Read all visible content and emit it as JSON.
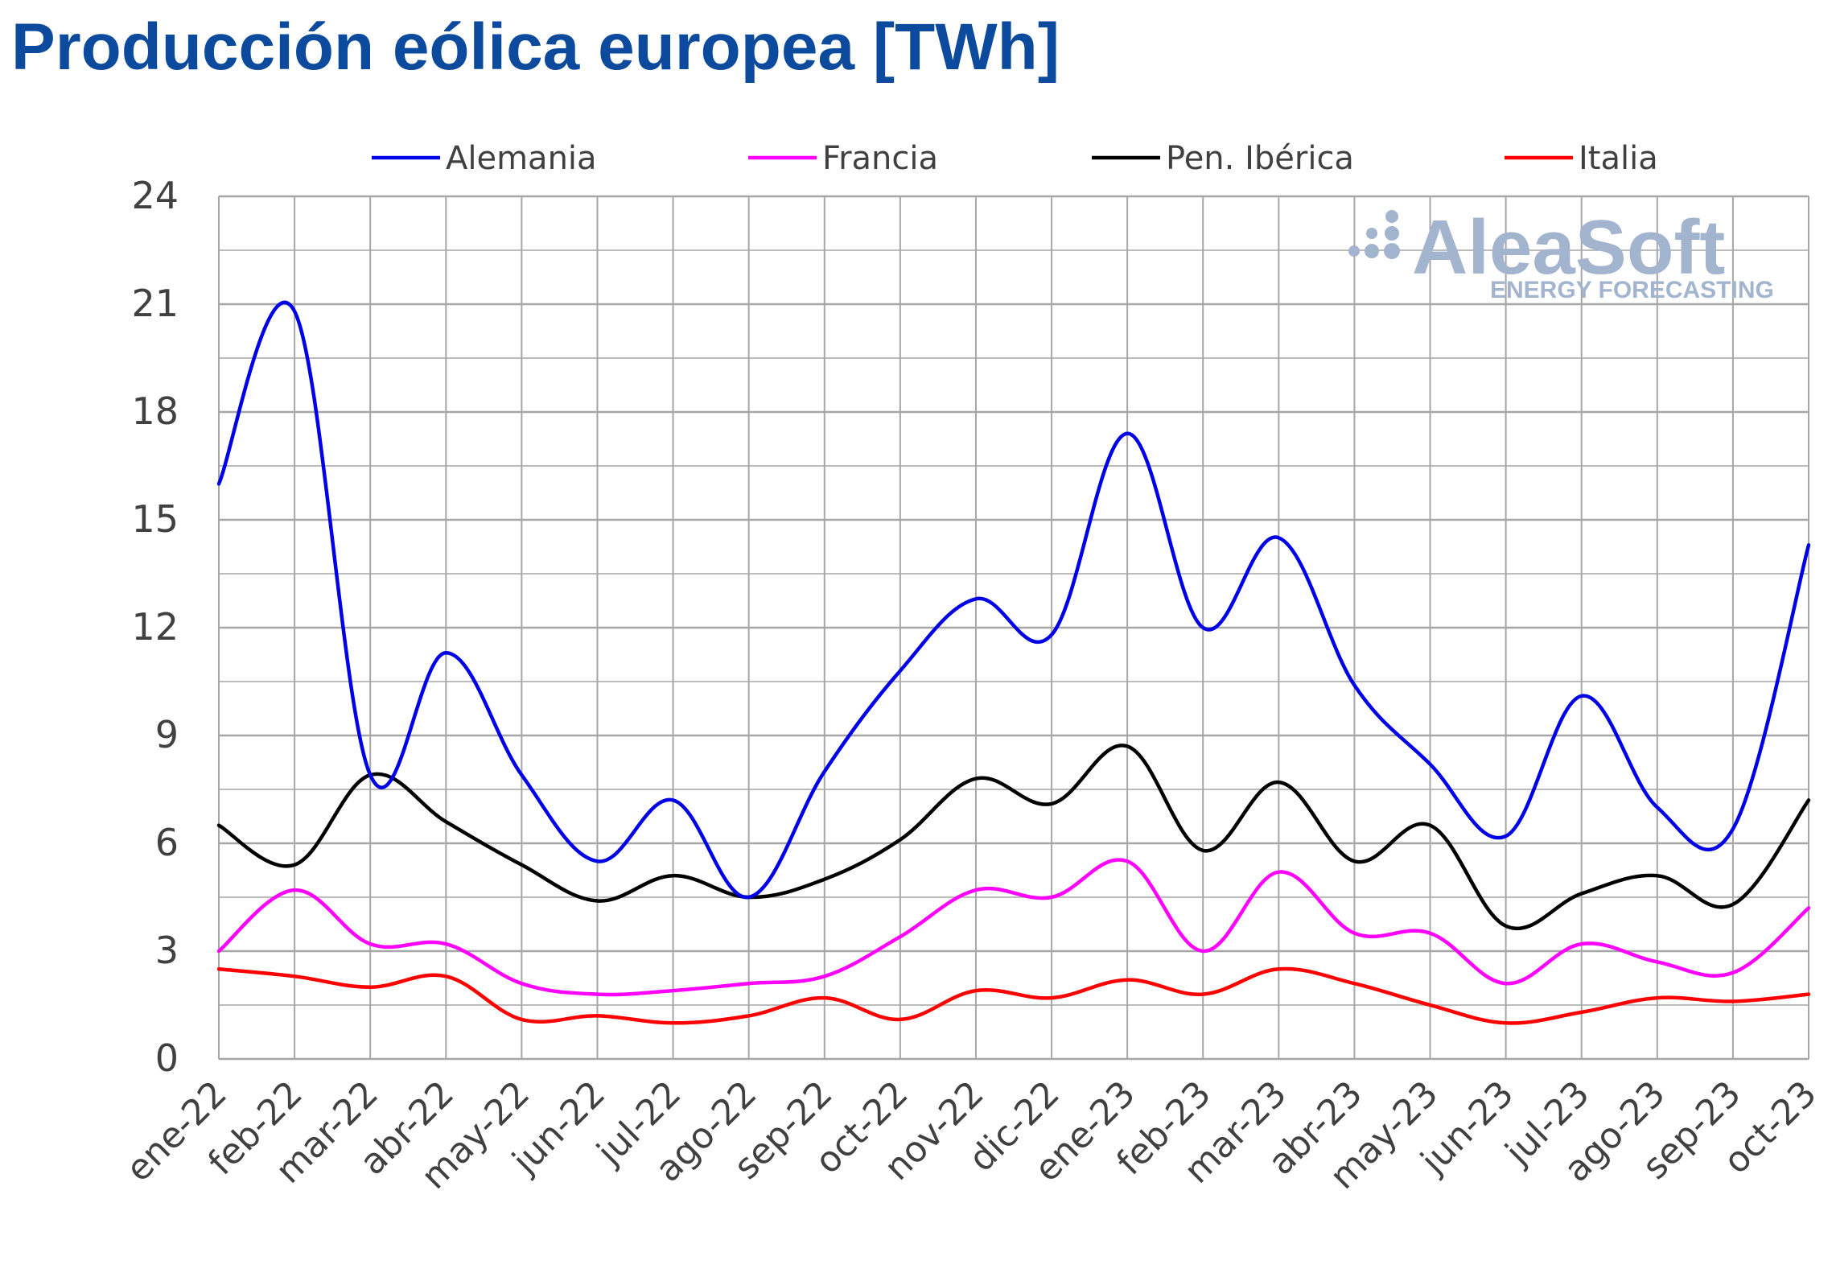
{
  "title": "Producción eólica europea [TWh]",
  "colors": {
    "title": "#0b4a9c",
    "grid": "#a6a6a6",
    "axis_text": "#404040",
    "logo": "#a3b4cf"
  },
  "logo": {
    "main": "AleaSoft",
    "sub": "ENERGY FORECASTING"
  },
  "chart_data": {
    "type": "line",
    "title": "Producción eólica europea [TWh]",
    "xlabel": "",
    "ylabel": "",
    "ylim": [
      0,
      24
    ],
    "yticks": [
      0,
      3,
      6,
      9,
      12,
      15,
      18,
      21,
      24
    ],
    "grid": true,
    "legend_position": "top",
    "categories": [
      "ene-22",
      "feb-22",
      "mar-22",
      "abr-22",
      "may-22",
      "jun-22",
      "jul-22",
      "ago-22",
      "sep-22",
      "oct-22",
      "nov-22",
      "dic-22",
      "ene-23",
      "feb-23",
      "mar-23",
      "abr-23",
      "may-23",
      "jun-23",
      "jul-23",
      "ago-23",
      "sep-23",
      "oct-23"
    ],
    "series": [
      {
        "name": "Alemania",
        "color": "#0000e6",
        "values": [
          16.0,
          20.8,
          7.9,
          11.3,
          7.9,
          5.5,
          7.2,
          4.5,
          8.0,
          10.8,
          12.8,
          11.8,
          17.4,
          12.0,
          14.5,
          10.4,
          8.2,
          6.2,
          10.1,
          7.0,
          6.4,
          14.3
        ]
      },
      {
        "name": "Francia",
        "color": "#ff00ff",
        "values": [
          3.0,
          4.7,
          3.2,
          3.2,
          2.1,
          1.8,
          1.9,
          2.1,
          2.3,
          3.4,
          4.7,
          4.5,
          5.5,
          3.0,
          5.2,
          3.5,
          3.5,
          2.1,
          3.2,
          2.7,
          2.4,
          4.2
        ]
      },
      {
        "name": "Pen. Ibérica",
        "color": "#000000",
        "values": [
          6.5,
          5.4,
          7.9,
          6.6,
          5.4,
          4.4,
          5.1,
          4.5,
          5.0,
          6.1,
          7.8,
          7.1,
          8.7,
          5.8,
          7.7,
          5.5,
          6.5,
          3.7,
          4.6,
          5.1,
          4.3,
          7.2
        ]
      },
      {
        "name": "Italia",
        "color": "#ff0000",
        "values": [
          2.5,
          2.3,
          2.0,
          2.3,
          1.1,
          1.2,
          1.0,
          1.2,
          1.7,
          1.1,
          1.9,
          1.7,
          2.2,
          1.8,
          2.5,
          2.1,
          1.5,
          1.0,
          1.3,
          1.7,
          1.6,
          1.8
        ]
      }
    ]
  }
}
